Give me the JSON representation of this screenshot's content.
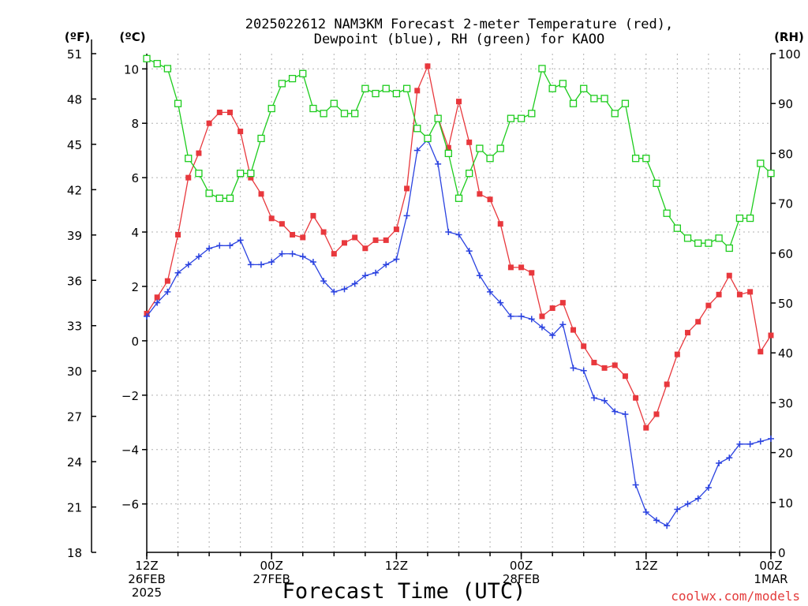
{
  "chart_data": {
    "type": "line",
    "title_lines": [
      "2025022612 NAM3KM Forecast 2-meter Temperature (red),",
      "Dewpoint (blue), RH (green) for KAOO"
    ],
    "xlabel": "Forecast Time (UTC)",
    "x_start": "2025-02-26 12Z",
    "x_step_hours": 1,
    "x_range_hours": [
      0,
      60
    ],
    "x_ticks": [
      {
        "hour": 0,
        "lines": [
          "12Z",
          "26FEB",
          "2025"
        ]
      },
      {
        "hour": 12,
        "lines": [
          "00Z",
          "27FEB"
        ]
      },
      {
        "hour": 24,
        "lines": [
          "12Z"
        ]
      },
      {
        "hour": 36,
        "lines": [
          "00Z",
          "28FEB"
        ]
      },
      {
        "hour": 48,
        "lines": [
          "12Z"
        ]
      },
      {
        "hour": 60,
        "lines": [
          "00Z",
          "1MAR"
        ]
      }
    ],
    "y_left_celsius": {
      "unit_label": "(ºC)",
      "ticks": [
        "10",
        "8",
        "6",
        "4",
        "2",
        "0",
        "−2",
        "−4",
        "−6"
      ],
      "tick_values": [
        10,
        8,
        6,
        4,
        2,
        0,
        -2,
        -4,
        -6
      ],
      "range": [
        -7.78,
        10.56
      ]
    },
    "y_left_fahrenheit": {
      "unit_label": "(ºF)",
      "ticks": [
        "51",
        "48",
        "45",
        "42",
        "39",
        "36",
        "33",
        "30",
        "27",
        "24",
        "21",
        "18"
      ],
      "tick_values": [
        51,
        48,
        45,
        42,
        39,
        36,
        33,
        30,
        27,
        24,
        21,
        18
      ],
      "range": [
        18,
        51
      ]
    },
    "y_right": {
      "unit_label": "(RH)",
      "ticks": [
        "100",
        "90",
        "80",
        "70",
        "60",
        "50",
        "40",
        "30",
        "20",
        "10",
        "0"
      ],
      "tick_values": [
        100,
        90,
        80,
        70,
        60,
        50,
        40,
        30,
        20,
        10,
        0
      ],
      "range": [
        0,
        100
      ]
    },
    "grid": true,
    "watermark": "coolwx.com/models",
    "series": [
      {
        "name": "Temperature",
        "axis": "celsius",
        "color": "#e8383d",
        "marker": "filled-square",
        "values": [
          1.0,
          1.6,
          2.2,
          3.9,
          6.0,
          6.9,
          8.0,
          8.4,
          8.4,
          7.7,
          6.0,
          5.4,
          4.5,
          4.3,
          3.9,
          3.8,
          4.6,
          4.0,
          3.2,
          3.6,
          3.8,
          3.4,
          3.7,
          3.7,
          4.1,
          5.6,
          9.2,
          10.1,
          8.2,
          7.1,
          8.8,
          7.3,
          5.4,
          5.2,
          4.3,
          2.7,
          2.7,
          2.5,
          0.9,
          1.2,
          1.4,
          0.4,
          -0.2,
          -0.8,
          -1.0,
          -0.9,
          -1.3,
          -2.1,
          -3.2,
          -2.7,
          -1.6,
          -0.5,
          0.3,
          0.7,
          1.3,
          1.7,
          2.4,
          1.7,
          1.8,
          -0.4,
          0.2
        ]
      },
      {
        "name": "Dewpoint",
        "axis": "celsius",
        "color": "#2a42e0",
        "marker": "plus",
        "values": [
          0.9,
          1.4,
          1.8,
          2.5,
          2.8,
          3.1,
          3.4,
          3.5,
          3.5,
          3.7,
          2.8,
          2.8,
          2.9,
          3.2,
          3.2,
          3.1,
          2.9,
          2.2,
          1.8,
          1.9,
          2.1,
          2.4,
          2.5,
          2.8,
          3.0,
          4.6,
          7.0,
          7.4,
          6.5,
          4.0,
          3.9,
          3.3,
          2.4,
          1.8,
          1.4,
          0.9,
          0.9,
          0.8,
          0.5,
          0.2,
          0.6,
          -1.0,
          -1.1,
          -2.1,
          -2.2,
          -2.6,
          -2.7,
          -5.3,
          -6.3,
          -6.6,
          -6.8,
          -6.2,
          -6.0,
          -5.8,
          -5.4,
          -4.5,
          -4.3,
          -3.8,
          -3.8,
          -3.7,
          -3.6
        ]
      },
      {
        "name": "RH",
        "axis": "rh",
        "color": "#1dcc1d",
        "marker": "open-square",
        "values": [
          99,
          98,
          97,
          90,
          79,
          76,
          72,
          71,
          71,
          76,
          76,
          83,
          89,
          94,
          95,
          96,
          89,
          88,
          90,
          88,
          88,
          93,
          92,
          93,
          92,
          93,
          85,
          83,
          87,
          80,
          71,
          76,
          81,
          79,
          81,
          87,
          87,
          88,
          97,
          93,
          94,
          90,
          93,
          91,
          91,
          88,
          90,
          79,
          79,
          74,
          68,
          65,
          63,
          62,
          62,
          63,
          61,
          67,
          67,
          78,
          76
        ]
      }
    ]
  }
}
